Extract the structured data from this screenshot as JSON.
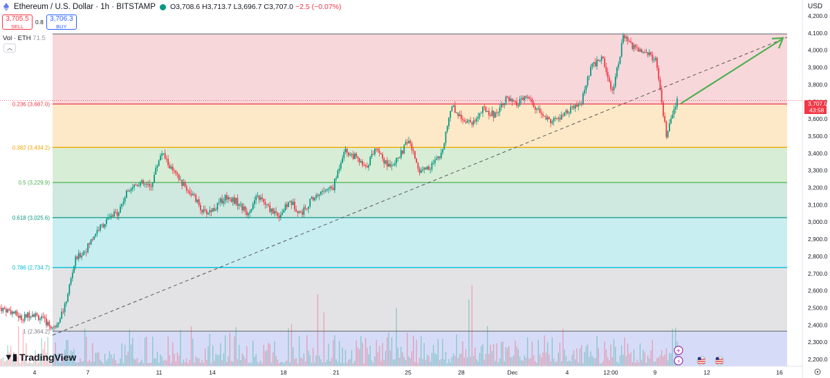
{
  "header": {
    "symbol": "Ethereum / U.S. Dollar · 1h · BITSTAMP",
    "open": "O3,708.6",
    "high": "H3,713.7",
    "low": "L3,696.7",
    "close": "C3,707.0",
    "change": "−2.5 (−0.07%)"
  },
  "trade": {
    "sell_price": "3,705.5",
    "sell_label": "SELL",
    "spread": "0.8",
    "buy_price": "3,706.3",
    "buy_label": "BUY"
  },
  "volume": {
    "label": "Vol · ETH",
    "value": "71.5"
  },
  "currency": "USD",
  "logo": "TradingView",
  "colors": {
    "up": "#089981",
    "down": "#f23645",
    "trend_arrow": "#4caf50"
  },
  "chart_data": {
    "type": "candlestick",
    "yrange": [
      2160,
      4200
    ],
    "y_ticks": [
      "4,200.0",
      "4,100.0",
      "4,000.0",
      "3,900.0",
      "3,800.0",
      "3,700.0",
      "3,600.0",
      "3,500.0",
      "3,400.0",
      "3,300.0",
      "3,200.0",
      "3,100.0",
      "3,000.0",
      "2,900.0",
      "2,800.0",
      "2,700.0",
      "2,600.0",
      "2,500.0",
      "2,400.0",
      "2,300.0",
      "2,200.0"
    ],
    "x_ticks": [
      "4",
      "7",
      "11",
      "14",
      "18",
      "21",
      "25",
      "28",
      "Dec",
      "4",
      "12:00",
      "9",
      "12",
      "16"
    ],
    "fib_levels": [
      {
        "label": "1 (2,364.2)",
        "value": 2364.2,
        "color": "#787b86"
      },
      {
        "label": "0.786 (2,734.7)",
        "value": 2734.7,
        "color": "#00bcd4"
      },
      {
        "label": "0.618 (3,025.6)",
        "value": 3025.6,
        "color": "#089981"
      },
      {
        "label": "0.5 (3,229.9)",
        "value": 3229.9,
        "color": "#4caf50"
      },
      {
        "label": "0.382 (3,434.2)",
        "value": 3434.2,
        "color": "#f0a500"
      },
      {
        "label": "0.236 (3,687.0)",
        "value": 3687.0,
        "color": "#f23645"
      },
      {
        "label": "",
        "value": 4095.0,
        "color": "#787b86"
      }
    ],
    "last_price": {
      "value": "3,707.0",
      "countdown": "43:58",
      "numeric": 3707.0
    },
    "path": [
      2500,
      2480,
      2440,
      2470,
      2430,
      2380,
      2500,
      2780,
      2840,
      2950,
      3010,
      3060,
      3200,
      3230,
      3200,
      3410,
      3300,
      3220,
      3150,
      3050,
      3080,
      3150,
      3120,
      3050,
      3150,
      3080,
      3040,
      3120,
      3050,
      3130,
      3180,
      3200,
      3420,
      3380,
      3310,
      3440,
      3330,
      3360,
      3480,
      3300,
      3320,
      3380,
      3680,
      3600,
      3580,
      3660,
      3620,
      3720,
      3680,
      3730,
      3650,
      3590,
      3600,
      3650,
      3680,
      3900,
      3960,
      3760,
      4080,
      4010,
      4000,
      3940,
      3500,
      3707
    ]
  }
}
